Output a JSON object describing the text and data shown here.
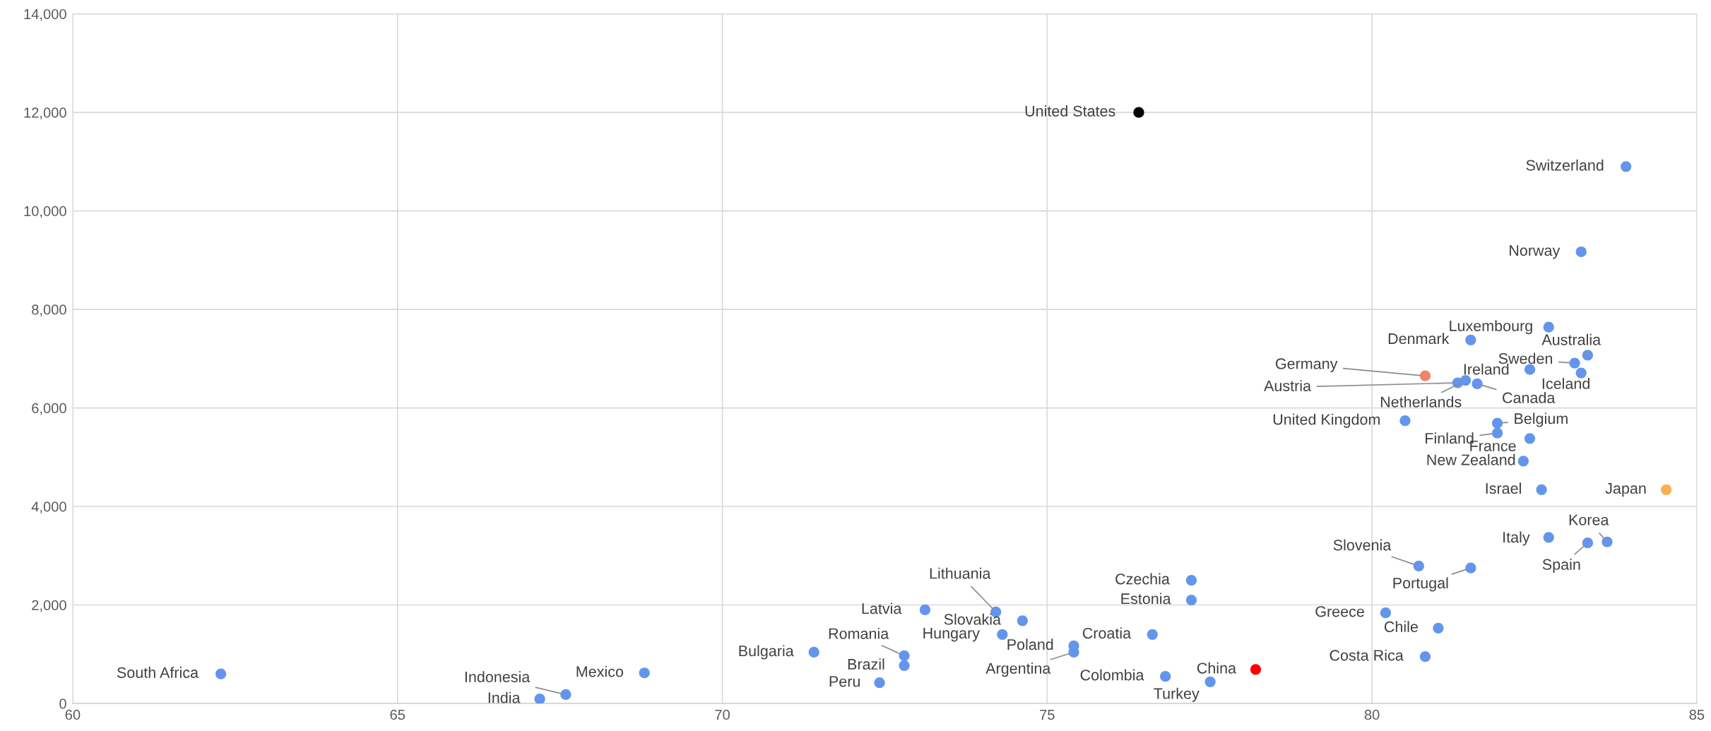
{
  "chart_data": {
    "type": "scatter",
    "x": [
      76.41,
      83.91,
      83.22,
      82.72,
      81.52,
      83.32,
      83.12,
      83.22,
      82.43,
      80.82,
      81.32,
      81.44,
      81.62,
      80.51,
      81.93,
      81.93,
      82.43,
      82.33,
      82.61,
      84.53,
      83.62,
      82.72,
      83.32,
      80.72,
      81.52,
      77.22,
      77.22,
      80.21,
      81.02,
      80.82,
      74.21,
      74.62,
      73.12,
      74.31,
      76.62,
      75.41,
      75.41,
      72.8,
      72.8,
      71.41,
      72.42,
      76.82,
      77.51,
      78.21,
      62.28,
      68.8,
      67.59,
      67.19
    ],
    "series": [
      {
        "values": [
          12000,
          10900,
          9170,
          7640,
          7380,
          7070,
          6910,
          6710,
          6780,
          6650,
          6510,
          6560,
          6490,
          5740,
          5690,
          5490,
          5380,
          4920,
          4340,
          4340,
          3280,
          3370,
          3260,
          2790,
          2750,
          2500,
          2100,
          1840,
          1530,
          950,
          1860,
          1680,
          1900,
          1400,
          1400,
          1170,
          1040,
          970,
          770,
          1040,
          420,
          550,
          440,
          690,
          600,
          620,
          180,
          90
        ],
        "colors": [
          "#000000",
          "#6495ed",
          "#6495ed",
          "#6495ed",
          "#6495ed",
          "#6495ed",
          "#6495ed",
          "#6495ed",
          "#6495ed",
          "#f08467",
          "#6495ed",
          "#6495ed",
          "#6495ed",
          "#6495ed",
          "#6495ed",
          "#6495ed",
          "#6495ed",
          "#6495ed",
          "#6495ed",
          "#f9b050",
          "#6495ed",
          "#6495ed",
          "#6495ed",
          "#6495ed",
          "#6495ed",
          "#6495ed",
          "#6495ed",
          "#6495ed",
          "#6495ed",
          "#6495ed",
          "#6495ed",
          "#6495ed",
          "#6495ed",
          "#6495ed",
          "#6495ed",
          "#6495ed",
          "#6495ed",
          "#6495ed",
          "#6495ed",
          "#6495ed",
          "#6495ed",
          "#6495ed",
          "#6495ed",
          "#ff0000",
          "#6495ed",
          "#6495ed",
          "#6495ed",
          "#6495ed"
        ]
      }
    ],
    "annotations": [
      {
        "text": "United States",
        "x": 76.41,
        "y": 12000
      },
      {
        "text": "Switzerland",
        "x": 83.91,
        "y": 10900
      },
      {
        "text": "Norway",
        "x": 83.22,
        "y": 9170
      },
      {
        "text": "Luxembourg",
        "x": 82.72,
        "y": 7640
      },
      {
        "text": "Denmark",
        "x": 81.52,
        "y": 7380
      },
      {
        "text": "Australia",
        "x": 83.32,
        "y": 7070
      },
      {
        "text": "Sweden",
        "x": 83.12,
        "y": 6910
      },
      {
        "text": "Iceland",
        "x": 83.22,
        "y": 6710
      },
      {
        "text": "Ireland",
        "x": 82.43,
        "y": 6780
      },
      {
        "text": "Germany",
        "x": 80.82,
        "y": 6650
      },
      {
        "text": "Austria",
        "x": 81.32,
        "y": 6510
      },
      {
        "text": "Netherlands",
        "x": 81.44,
        "y": 6560
      },
      {
        "text": "Canada",
        "x": 81.62,
        "y": 6490
      },
      {
        "text": "United Kingdom",
        "x": 80.51,
        "y": 5740
      },
      {
        "text": "Belgium",
        "x": 81.93,
        "y": 5690
      },
      {
        "text": "Finland",
        "x": 81.93,
        "y": 5490
      },
      {
        "text": "France",
        "x": 82.43,
        "y": 5380
      },
      {
        "text": "New Zealand",
        "x": 82.33,
        "y": 4920
      },
      {
        "text": "Israel",
        "x": 82.61,
        "y": 4340
      },
      {
        "text": "Japan",
        "x": 84.53,
        "y": 4340
      },
      {
        "text": "Korea",
        "x": 83.62,
        "y": 3280
      },
      {
        "text": "Italy",
        "x": 82.72,
        "y": 3370
      },
      {
        "text": "Spain",
        "x": 83.32,
        "y": 3260
      },
      {
        "text": "Slovenia",
        "x": 80.72,
        "y": 2790
      },
      {
        "text": "Portugal",
        "x": 81.52,
        "y": 2750
      },
      {
        "text": "Czechia",
        "x": 77.22,
        "y": 2500
      },
      {
        "text": "Estonia",
        "x": 77.22,
        "y": 2100
      },
      {
        "text": "Greece",
        "x": 80.21,
        "y": 1840
      },
      {
        "text": "Chile",
        "x": 81.02,
        "y": 1530
      },
      {
        "text": "Costa Rica",
        "x": 80.82,
        "y": 950
      },
      {
        "text": "Lithuania",
        "x": 74.21,
        "y": 1860
      },
      {
        "text": "Slovakia",
        "x": 74.62,
        "y": 1680
      },
      {
        "text": "Latvia",
        "x": 73.12,
        "y": 1900
      },
      {
        "text": "Hungary",
        "x": 74.31,
        "y": 1400
      },
      {
        "text": "Croatia",
        "x": 76.62,
        "y": 1400
      },
      {
        "text": "Poland",
        "x": 75.41,
        "y": 1170
      },
      {
        "text": "Argentina",
        "x": 75.41,
        "y": 1040
      },
      {
        "text": "Romania",
        "x": 72.8,
        "y": 970
      },
      {
        "text": "Brazil",
        "x": 72.8,
        "y": 770
      },
      {
        "text": "Bulgaria",
        "x": 71.41,
        "y": 1040
      },
      {
        "text": "Peru",
        "x": 72.42,
        "y": 420
      },
      {
        "text": "Colombia",
        "x": 76.82,
        "y": 550
      },
      {
        "text": "Turkey",
        "x": 77.51,
        "y": 440
      },
      {
        "text": "China",
        "x": 78.21,
        "y": 690
      },
      {
        "text": "South Africa",
        "x": 62.28,
        "y": 600
      },
      {
        "text": "Mexico",
        "x": 68.8,
        "y": 620
      },
      {
        "text": "Indonesia",
        "x": 67.59,
        "y": 180
      },
      {
        "text": "India",
        "x": 67.19,
        "y": 90
      }
    ],
    "xlim": [
      60,
      85
    ],
    "xticks": [
      60,
      65,
      70,
      75,
      80,
      85
    ],
    "ylim": [
      0,
      14000
    ],
    "yticks": [
      0,
      {
        "value": 2000,
        "label": "2,000"
      },
      {
        "value": 4000,
        "label": "4,000"
      },
      {
        "value": 6000,
        "label": "6,000"
      },
      {
        "value": 8000,
        "label": "8,000"
      },
      {
        "value": 10000,
        "label": "10,000"
      },
      {
        "value": 12000,
        "label": "12,000"
      },
      {
        "value": 14000,
        "label": "14,000"
      }
    ],
    "grid": true,
    "marker": "circle",
    "legend": false
  }
}
